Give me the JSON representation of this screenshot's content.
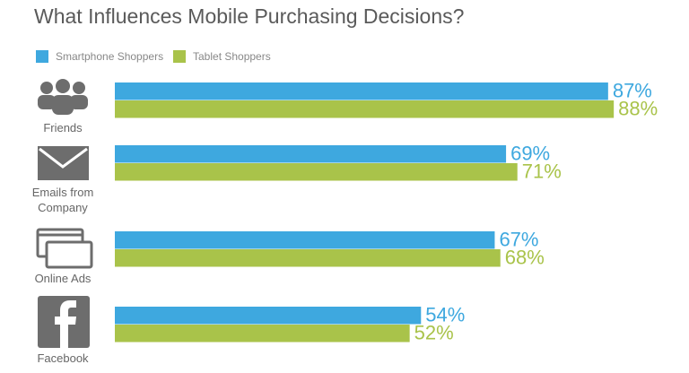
{
  "chart_data": {
    "type": "bar",
    "orientation": "horizontal",
    "title": "What Influences Mobile Purchasing Decisions?",
    "categories": [
      "Friends",
      "Emails from Company",
      "Online Ads",
      "Facebook"
    ],
    "series": [
      {
        "name": "Smartphone Shoppers",
        "color": "#3ea8df",
        "values": [
          87,
          69,
          67,
          54
        ],
        "value_labels": [
          "87%",
          "69%",
          "67%",
          "54%"
        ]
      },
      {
        "name": "Tablet Shoppers",
        "color": "#a9c34a",
        "values": [
          88,
          71,
          68,
          52
        ],
        "value_labels": [
          "88%",
          "71%",
          "68%",
          "52%"
        ]
      }
    ],
    "xlim": [
      0,
      100
    ],
    "legend": "top-left"
  }
}
